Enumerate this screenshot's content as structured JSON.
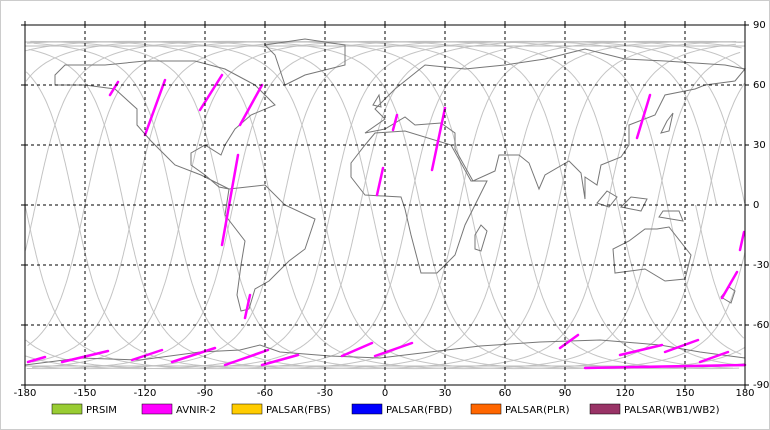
{
  "map": {
    "xlim": [
      -180,
      180
    ],
    "ylim": [
      -90,
      90
    ],
    "xticks": [
      -180,
      -150,
      -120,
      -90,
      -60,
      -30,
      0,
      30,
      60,
      90,
      120,
      150,
      180
    ],
    "yticks": [
      -90,
      -60,
      -30,
      0,
      30,
      60,
      90
    ],
    "grid": true,
    "legend": [
      {
        "name": "PRSIM",
        "color": "#99cc33"
      },
      {
        "name": "AVNIR-2",
        "color": "#ff00ff"
      },
      {
        "name": "PALSAR(FBS)",
        "color": "#ffcc00"
      },
      {
        "name": "PALSAR(FBD)",
        "color": "#0000ff"
      },
      {
        "name": "PALSAR(PLR)",
        "color": "#ff6600"
      },
      {
        "name": "PALSAR(WB1/WB2)",
        "color": "#993366"
      }
    ]
  }
}
